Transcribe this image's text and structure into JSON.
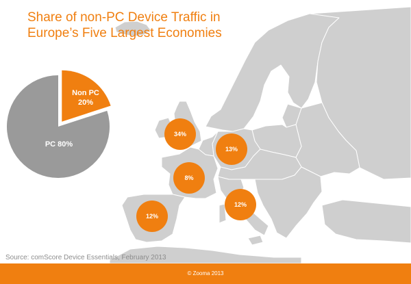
{
  "title": "Share of non-PC Device Traffic in Europe’s Five Largest Economies",
  "source": "Source: comScore Device Essentials, February 2013",
  "footer": "© Zooma 2013",
  "colors": {
    "accent": "#f07f10",
    "land": "#cfcfcf",
    "border": "#ffffff",
    "pie_grey": "#9a9a9a"
  },
  "pie": {
    "slices": [
      {
        "label": "Non PC",
        "value": "20%",
        "color": "#f07f10",
        "exploded": true
      },
      {
        "label": "PC",
        "value": "80%",
        "color": "#9a9a9a",
        "exploded": false
      }
    ],
    "pc_label": "PC 80%"
  },
  "markers": [
    {
      "country": "United Kingdom",
      "label": "34%"
    },
    {
      "country": "Germany",
      "label": "13%"
    },
    {
      "country": "France",
      "label": "8%"
    },
    {
      "country": "Italy",
      "label": "12%"
    },
    {
      "country": "Spain",
      "label": "12%"
    }
  ]
}
